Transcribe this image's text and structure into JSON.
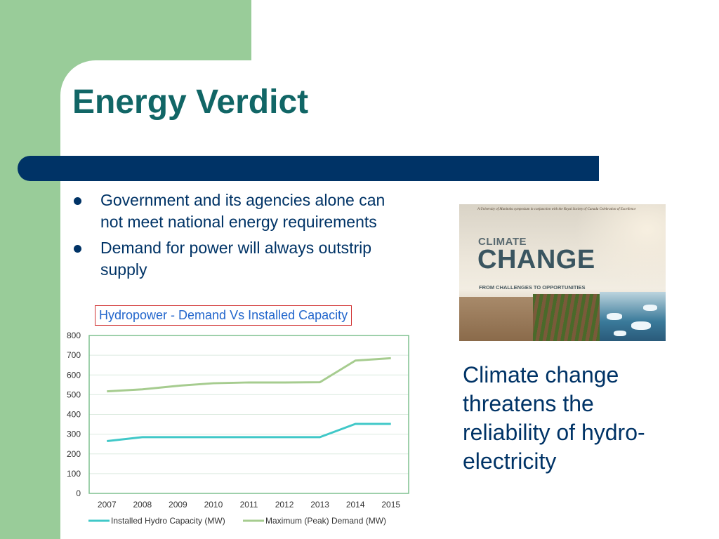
{
  "slide": {
    "title": "Energy Verdict",
    "bullets": [
      "Government and its agencies alone can not meet national energy requirements",
      "Demand for power will always outstrip supply"
    ],
    "chart_caption": "Hydropower - Demand Vs  Installed Capacity",
    "side_text": "Climate change threatens the reliability of hydro-electricity"
  },
  "photo": {
    "banner_text": "A University of Manitoba symposium in conjunction with the Royal Society of Canada Celebration of Excellence",
    "climate_text": "CLIMATE",
    "change_text": "CHANGE",
    "subtitle_text": "FROM CHALLENGES TO OPPORTUNITIES"
  },
  "colors": {
    "green": "#99cc99",
    "navy": "#003366",
    "title": "#116666",
    "series_installed": "#40c8c8",
    "series_demand": "#a6cc8f",
    "caption_border": "#d03030",
    "caption_text": "#2266cc"
  },
  "chart_data": {
    "type": "line",
    "title": "",
    "xlabel": "",
    "ylabel": "",
    "x": [
      "2007",
      "2008",
      "2009",
      "2010",
      "2011",
      "2012",
      "2013",
      "2014",
      "2015"
    ],
    "ylim": [
      0,
      800
    ],
    "yticks": [
      0,
      100,
      200,
      300,
      400,
      500,
      600,
      700,
      800
    ],
    "grid": true,
    "legend_position": "bottom",
    "series": [
      {
        "name": "Installed Hydro Capacity (MW)",
        "color": "#40c8c8",
        "values": [
          265,
          285,
          285,
          285,
          285,
          285,
          285,
          352,
          352
        ]
      },
      {
        "name": "Maximum (Peak) Demand (MW)",
        "color": "#a6cc8f",
        "values": [
          517,
          527,
          545,
          558,
          562,
          562,
          563,
          673,
          685
        ]
      }
    ]
  }
}
